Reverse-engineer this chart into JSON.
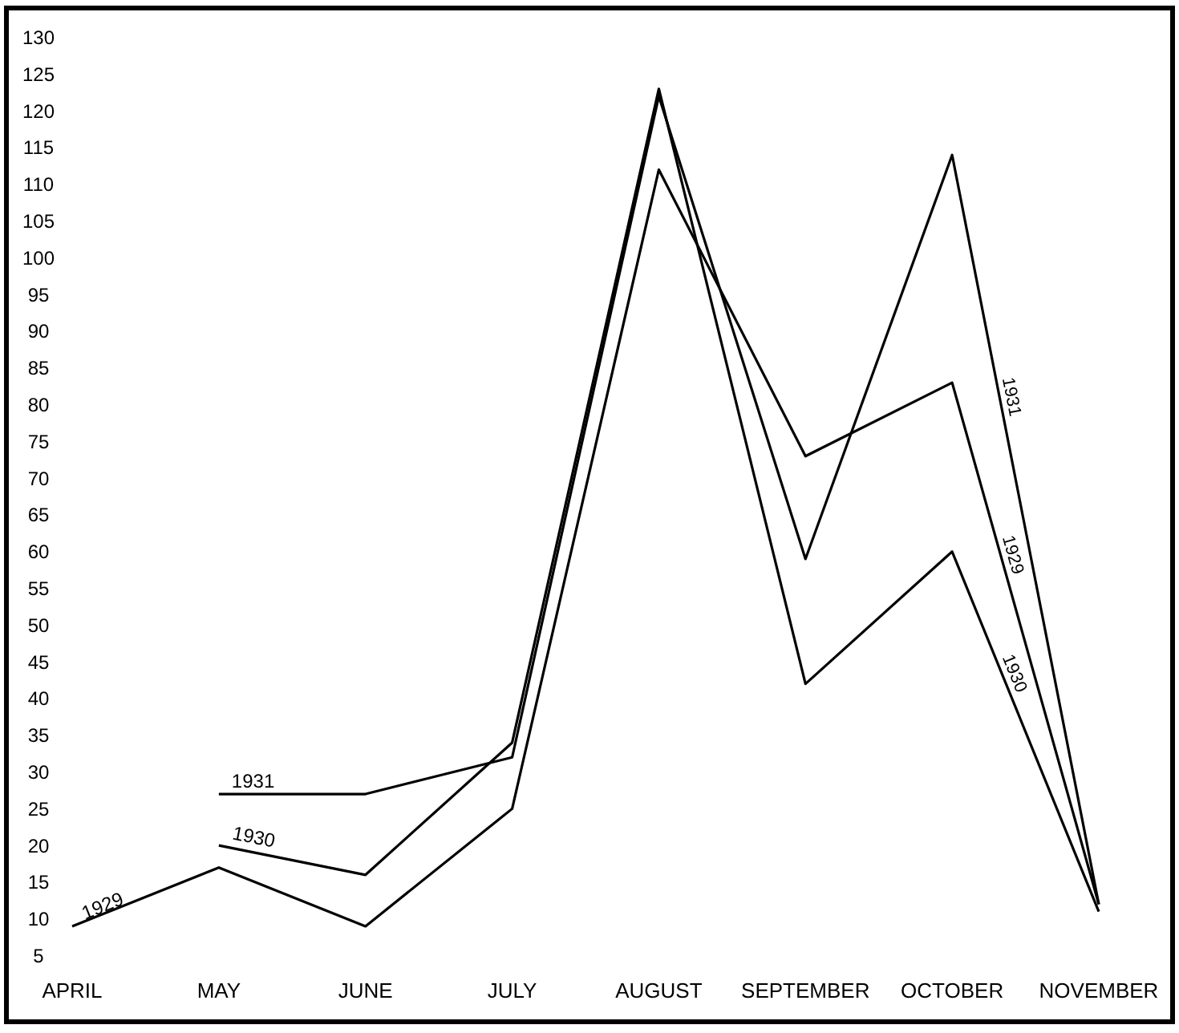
{
  "chart_data": {
    "type": "line",
    "categories": [
      "APRIL",
      "MAY",
      "JUNE",
      "JULY",
      "AUGUST",
      "SEPTEMBER",
      "OCTOBER",
      "NOVEMBER"
    ],
    "series": [
      {
        "name": "1929",
        "color": "#000000",
        "values": [
          9,
          17,
          9,
          25,
          112,
          73,
          83,
          12
        ]
      },
      {
        "name": "1930",
        "color": "#000000",
        "values": [
          null,
          20,
          16,
          34,
          123,
          42,
          60,
          11
        ]
      },
      {
        "name": "1931",
        "color": "#000000",
        "values": [
          null,
          27,
          27,
          32,
          122,
          59,
          114,
          12
        ]
      }
    ],
    "ylim": [
      -4,
      134
    ],
    "yticks": [
      5,
      10,
      15,
      20,
      25,
      30,
      35,
      40,
      45,
      50,
      55,
      60,
      65,
      70,
      75,
      80,
      85,
      90,
      95,
      100,
      105,
      110,
      115,
      120,
      125,
      130
    ],
    "grid": false,
    "marker": "none",
    "line_style": "solid"
  }
}
